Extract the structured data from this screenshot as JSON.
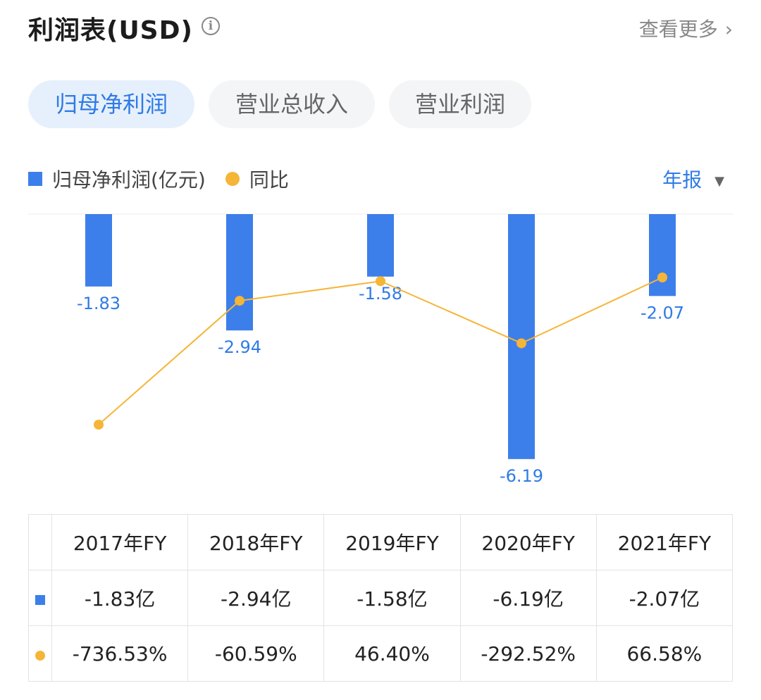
{
  "header": {
    "title": "利润表(USD)",
    "more_label": "查看更多",
    "info_glyph": "i",
    "more_chevron": "›"
  },
  "tabs": [
    {
      "label": "归母净利润",
      "active": true
    },
    {
      "label": "营业总收入",
      "active": false
    },
    {
      "label": "营业利润",
      "active": false
    }
  ],
  "legend": {
    "bar_label": "归母净利润(亿元)",
    "line_label": "同比",
    "period_label": "年报",
    "period_caret": "▼"
  },
  "colors": {
    "bar": "#3d7fea",
    "line": "#f5b537",
    "accent": "#2f7be5",
    "positive": "#e0474f",
    "negative": "#2aa36b"
  },
  "chart_data": {
    "type": "bar",
    "categories": [
      "2017年FY",
      "2018年FY",
      "2019年FY",
      "2020年FY",
      "2021年FY"
    ],
    "series": [
      {
        "name": "归母净利润(亿元)",
        "type": "bar",
        "values": [
          -1.83,
          -2.94,
          -1.58,
          -6.19,
          -2.07
        ],
        "labels": [
          "-1.83",
          "-2.94",
          "-1.58",
          "-6.19",
          "-2.07"
        ]
      },
      {
        "name": "同比",
        "type": "line",
        "values": [
          -736.53,
          -60.59,
          46.4,
          -292.52,
          66.58
        ]
      }
    ],
    "ylim": [
      -6.19,
      0
    ],
    "grid": false,
    "legend_position": "top-left"
  },
  "table": {
    "columns": [
      "2017年FY",
      "2018年FY",
      "2019年FY",
      "2020年FY",
      "2021年FY"
    ],
    "profit_row": [
      "-1.83亿",
      "-2.94亿",
      "-1.58亿",
      "-6.19亿",
      "-2.07亿"
    ],
    "yoy_row": [
      "-736.53%",
      "-60.59%",
      "46.40%",
      "-292.52%",
      "66.58%"
    ],
    "yoy_sign": [
      "neg",
      "neg",
      "pos",
      "neg",
      "pos"
    ]
  }
}
